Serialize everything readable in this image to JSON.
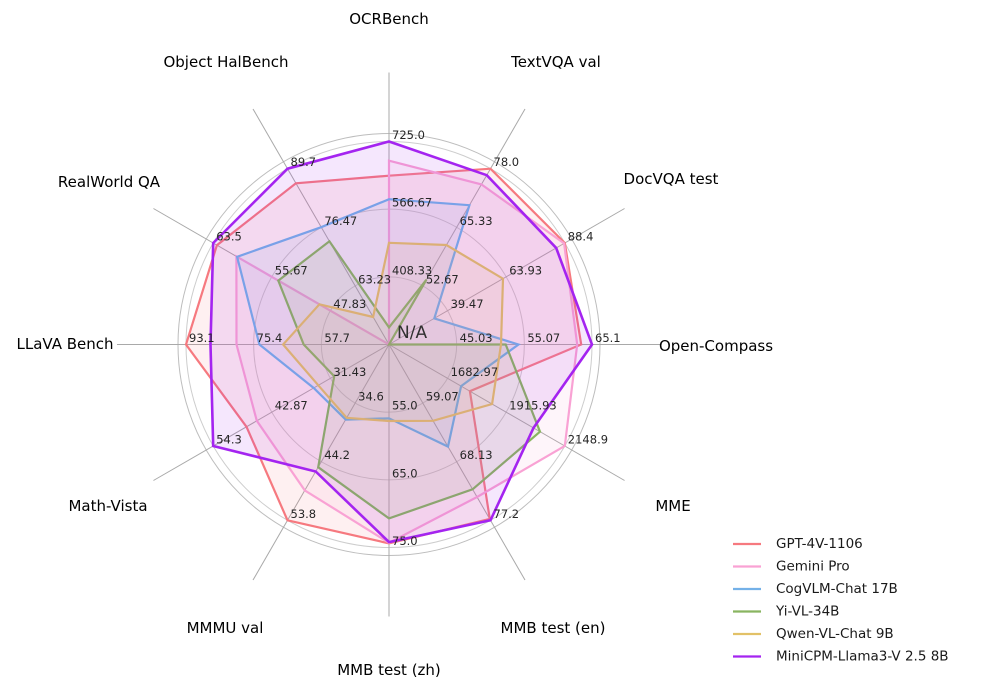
{
  "chart_data": {
    "type": "radar",
    "title": "",
    "grid": true,
    "num_rings": 3,
    "legend_position": "lower right",
    "axes": [
      {
        "label": "OCRBench",
        "min": 250,
        "max": 725,
        "tick_labels": [
          "408.33",
          "566.67",
          "725.0"
        ]
      },
      {
        "label": "TextVQA val",
        "min": 40,
        "max": 78,
        "tick_labels": [
          "52.67",
          "65.33",
          "78.0"
        ]
      },
      {
        "label": "DocVQA test",
        "min": 15,
        "max": 88.4,
        "tick_labels": [
          "39.47",
          "63.93",
          "88.4"
        ]
      },
      {
        "label": "Open-Compass",
        "min": 35,
        "max": 65.1,
        "tick_labels": [
          "45.03",
          "55.07",
          "65.1"
        ]
      },
      {
        "label": "MME",
        "min": 1450,
        "max": 2148.9,
        "tick_labels": [
          "1682.97",
          "1915.93",
          "2148.9"
        ]
      },
      {
        "label": "MMB test (en)",
        "min": 50,
        "max": 77.2,
        "tick_labels": [
          "59.07",
          "68.13",
          "77.2"
        ]
      },
      {
        "label": "MMB test (zh)",
        "min": 45,
        "max": 75,
        "tick_labels": [
          "55.0",
          "65.0",
          "75.0"
        ]
      },
      {
        "label": "MMMU val",
        "min": 25,
        "max": 53.8,
        "tick_labels": [
          "34.6",
          "44.2",
          "53.8"
        ]
      },
      {
        "label": "Math-Vista",
        "min": 20,
        "max": 54.3,
        "tick_labels": [
          "31.43",
          "42.87",
          "54.3"
        ]
      },
      {
        "label": "LLaVA Bench",
        "min": 40,
        "max": 93.1,
        "tick_labels": [
          "57.7",
          "75.4",
          "93.1"
        ]
      },
      {
        "label": "RealWorld QA",
        "min": 40,
        "max": 63.5,
        "tick_labels": [
          "47.83",
          "55.67",
          "63.5"
        ]
      },
      {
        "label": "Object HalBench",
        "min": 50,
        "max": 89.7,
        "tick_labels": [
          "63.23",
          "76.47",
          "89.7"
        ]
      }
    ],
    "series": [
      {
        "name": "GPT-4V-1106",
        "color": "#F6797F",
        "values": [
          645,
          78.0,
          88.4,
          63.5,
          1771.5,
          77.0,
          74.4,
          53.8,
          47.8,
          93.1,
          63.0,
          86.4
        ]
      },
      {
        "name": "Gemini Pro",
        "color": "#F9A2D4",
        "values": [
          680,
          74.6,
          88.1,
          62.9,
          2148.9,
          73.6,
          74.3,
          48.9,
          45.8,
          79.9,
          60.4,
          null
        ]
      },
      {
        "name": "CogVLM-Chat 17B",
        "color": "#74B1E8",
        "values": [
          590,
          70.1,
          33.9,
          54.2,
          1736.6,
          65.8,
          55.9,
          37.3,
          34.7,
          73.9,
          60.3,
          76.5
        ]
      },
      {
        "name": "Yi-VL-34B",
        "color": "#89B560",
        "values": [
          290,
          54.0,
          null,
          52.3,
          2050.2,
          72.4,
          70.7,
          45.1,
          30.7,
          62.3,
          54.8,
          73.3
        ]
      },
      {
        "name": "Qwen-VL-Chat 9B",
        "color": "#E2C167",
        "values": [
          488,
          61.5,
          62.6,
          51.6,
          1860.0,
          61.8,
          56.3,
          37.0,
          33.8,
          67.7,
          49.3,
          56.2
        ]
      },
      {
        "name": "MiniCPM-Llama3-V 2.5 8B",
        "color": "#A424F0",
        "values": [
          725,
          76.6,
          84.8,
          65.1,
          2024.6,
          77.2,
          74.2,
          45.8,
          54.3,
          86.7,
          63.5,
          89.7
        ]
      }
    ],
    "annotations": [
      {
        "text": "N/A"
      }
    ]
  }
}
